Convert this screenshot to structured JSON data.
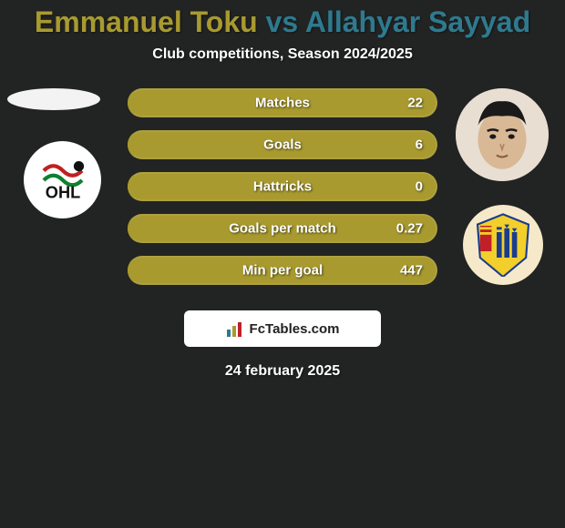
{
  "title": {
    "player1": "Emmanuel Toku",
    "vs": "vs",
    "player2": "Allahyar Sayyad",
    "color1": "#a89a2f",
    "color2": "#2e7a8f"
  },
  "subtitle": "Club competitions, Season 2024/2025",
  "date": "24 february 2025",
  "footer_brand": "FcTables.com",
  "bars": {
    "left_color": "#a89a2f",
    "right_color": "#2e7a8f",
    "track_color": "#a89a2f",
    "rows": [
      {
        "label": "Matches",
        "right_text": "22",
        "left_pct": 2,
        "right_pct": 0
      },
      {
        "label": "Goals",
        "right_text": "6",
        "left_pct": 2,
        "right_pct": 0
      },
      {
        "label": "Hattricks",
        "right_text": "0",
        "left_pct": 2,
        "right_pct": 0
      },
      {
        "label": "Goals per match",
        "right_text": "0.27",
        "left_pct": 2,
        "right_pct": 0
      },
      {
        "label": "Min per goal",
        "right_text": "447",
        "left_pct": 2,
        "right_pct": 0
      }
    ]
  }
}
